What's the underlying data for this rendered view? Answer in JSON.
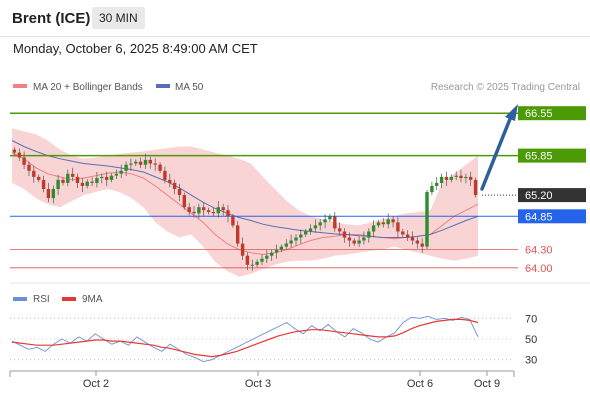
{
  "header": {
    "instrument": "Brent (ICE)",
    "timeframe": "30 MIN",
    "datetime": "Monday, October 6, 2025 8:49:00 AM CET"
  },
  "legend": {
    "ma20": "MA 20 + Bollinger Bands",
    "ma50": "MA 50",
    "credit": "Research © 2025 Trading Central",
    "rsi": "RSI",
    "rsi_ma": "9MA"
  },
  "colors": {
    "resistance": "#4c9a06",
    "support": "#e05454",
    "pivot": "#2563eb",
    "current": "#333333",
    "bullish": "#2e8b2e",
    "bearish": "#c0392b",
    "bollinger": "#f7c5c5",
    "ma20": "#f08080",
    "ma50": "#5a6fb0",
    "arrow": "#2d5f9e",
    "rsi": "#6b8fd6",
    "rsi_ma": "#e53935"
  },
  "chart_data": [
    {
      "type": "candlestick",
      "title": "",
      "x_ticks": [
        "Oct 2",
        "Oct 3",
        "Oct 6",
        "Oct 9"
      ],
      "ylim": [
        63.75,
        66.85
      ],
      "levels": [
        {
          "value": 66.55,
          "label": "66.55",
          "kind": "resistance"
        },
        {
          "value": 65.85,
          "label": "65.85",
          "kind": "resistance"
        },
        {
          "value": 65.2,
          "label": "65.20",
          "kind": "current"
        },
        {
          "value": 64.85,
          "label": "64.85",
          "kind": "pivot"
        },
        {
          "value": 64.3,
          "label": "64.30",
          "kind": "support"
        },
        {
          "value": 64.0,
          "label": "64.00",
          "kind": "support"
        }
      ],
      "close": [
        65.9,
        65.82,
        65.7,
        65.6,
        65.5,
        65.45,
        65.3,
        65.15,
        65.3,
        65.45,
        65.4,
        65.55,
        65.5,
        65.4,
        65.35,
        65.42,
        65.4,
        65.48,
        65.5,
        65.45,
        65.52,
        65.55,
        65.6,
        65.7,
        65.72,
        65.75,
        65.7,
        65.78,
        65.72,
        65.7,
        65.6,
        65.45,
        65.4,
        65.3,
        65.2,
        65.0,
        64.92,
        64.9,
        65.0,
        64.95,
        64.92,
        64.9,
        65.0,
        64.95,
        64.85,
        64.7,
        64.4,
        64.2,
        64.05,
        64.05,
        64.1,
        64.15,
        64.2,
        64.25,
        64.3,
        64.35,
        64.4,
        64.45,
        64.5,
        64.55,
        64.6,
        64.65,
        64.7,
        64.75,
        64.8,
        64.85,
        64.65,
        64.6,
        64.5,
        64.45,
        64.4,
        64.45,
        64.5,
        64.6,
        64.7,
        64.75,
        64.72,
        64.8,
        64.75,
        64.6,
        64.55,
        64.5,
        64.45,
        64.4,
        64.35,
        65.25,
        65.35,
        65.4,
        65.5,
        65.45,
        65.5,
        65.52,
        65.48,
        65.5,
        65.45,
        65.2
      ],
      "bb_upper": [
        66.3,
        66.25,
        66.2,
        66.1,
        65.95,
        65.85,
        65.8,
        65.82,
        65.85,
        65.88,
        65.9,
        65.92,
        65.95,
        65.97,
        66.0,
        66.0,
        65.95,
        65.9,
        65.85,
        65.8,
        65.72,
        65.5,
        65.3,
        65.1,
        64.95,
        64.85,
        64.8,
        64.75,
        64.72,
        64.7,
        64.75,
        64.8,
        64.85,
        64.9,
        64.92,
        64.95,
        65.4,
        65.55,
        65.7,
        65.85
      ],
      "bb_lower": [
        65.4,
        65.3,
        65.15,
        65.05,
        65.0,
        65.1,
        65.2,
        65.25,
        65.3,
        65.25,
        65.15,
        65.0,
        64.75,
        64.6,
        64.5,
        64.55,
        64.35,
        64.1,
        63.95,
        63.85,
        63.9,
        63.98,
        64.05,
        64.1,
        64.12,
        64.12,
        64.15,
        64.2,
        64.22,
        64.25,
        64.28,
        64.3,
        64.35,
        64.3,
        64.25,
        64.2,
        64.15,
        64.12,
        64.15,
        64.2
      ],
      "ma20": [
        65.9,
        65.8,
        65.65,
        65.55,
        65.5,
        65.45,
        65.48,
        65.52,
        65.56,
        65.58,
        65.55,
        65.48,
        65.35,
        65.2,
        65.05,
        64.9,
        64.75,
        64.55,
        64.4,
        64.3,
        64.25,
        64.22,
        64.25,
        64.3,
        64.38,
        64.45,
        64.5,
        64.52,
        64.55,
        64.55,
        64.52,
        64.5,
        64.48,
        64.5,
        64.52,
        64.55,
        64.7,
        64.85,
        64.95,
        65.05
      ],
      "ma50": [
        66.1,
        66.0,
        65.92,
        65.85,
        65.8,
        65.76,
        65.72,
        65.7,
        65.68,
        65.65,
        65.62,
        65.58,
        65.5,
        65.42,
        65.32,
        65.2,
        65.08,
        64.98,
        64.9,
        64.83,
        64.78,
        64.72,
        64.68,
        64.65,
        64.62,
        64.6,
        64.58,
        64.56,
        64.55,
        64.53,
        64.52,
        64.5,
        64.5,
        64.5,
        64.52,
        64.55,
        64.62,
        64.7,
        64.78,
        64.85
      ]
    },
    {
      "type": "line",
      "title": "RSI",
      "ylim": [
        20,
        80
      ],
      "y_ticks": [
        "70",
        "50",
        "30"
      ],
      "series": [
        {
          "name": "RSI",
          "values": [
            48,
            44,
            40,
            42,
            38,
            45,
            50,
            46,
            52,
            48,
            55,
            50,
            45,
            48,
            44,
            52,
            47,
            42,
            38,
            45,
            40,
            35,
            32,
            28,
            30,
            34,
            38,
            42,
            46,
            50,
            54,
            58,
            62,
            66,
            60,
            55,
            63,
            58,
            64,
            57,
            52,
            60,
            56,
            50,
            47,
            52,
            56,
            66,
            71,
            70,
            72,
            69,
            70,
            68,
            71,
            69,
            52
          ]
        },
        {
          "name": "9MA",
          "values": [
            47,
            46,
            45,
            44,
            44,
            44,
            45,
            46,
            47,
            48,
            49,
            49,
            48,
            48,
            47,
            46,
            45,
            44,
            42,
            41,
            39,
            37,
            35,
            34,
            33,
            34,
            36,
            38,
            41,
            44,
            47,
            50,
            53,
            55,
            57,
            58,
            59,
            59,
            58,
            57,
            56,
            55,
            54,
            53,
            52,
            52,
            53,
            56,
            60,
            63,
            65,
            67,
            68,
            69,
            69,
            68,
            66
          ]
        }
      ]
    }
  ]
}
